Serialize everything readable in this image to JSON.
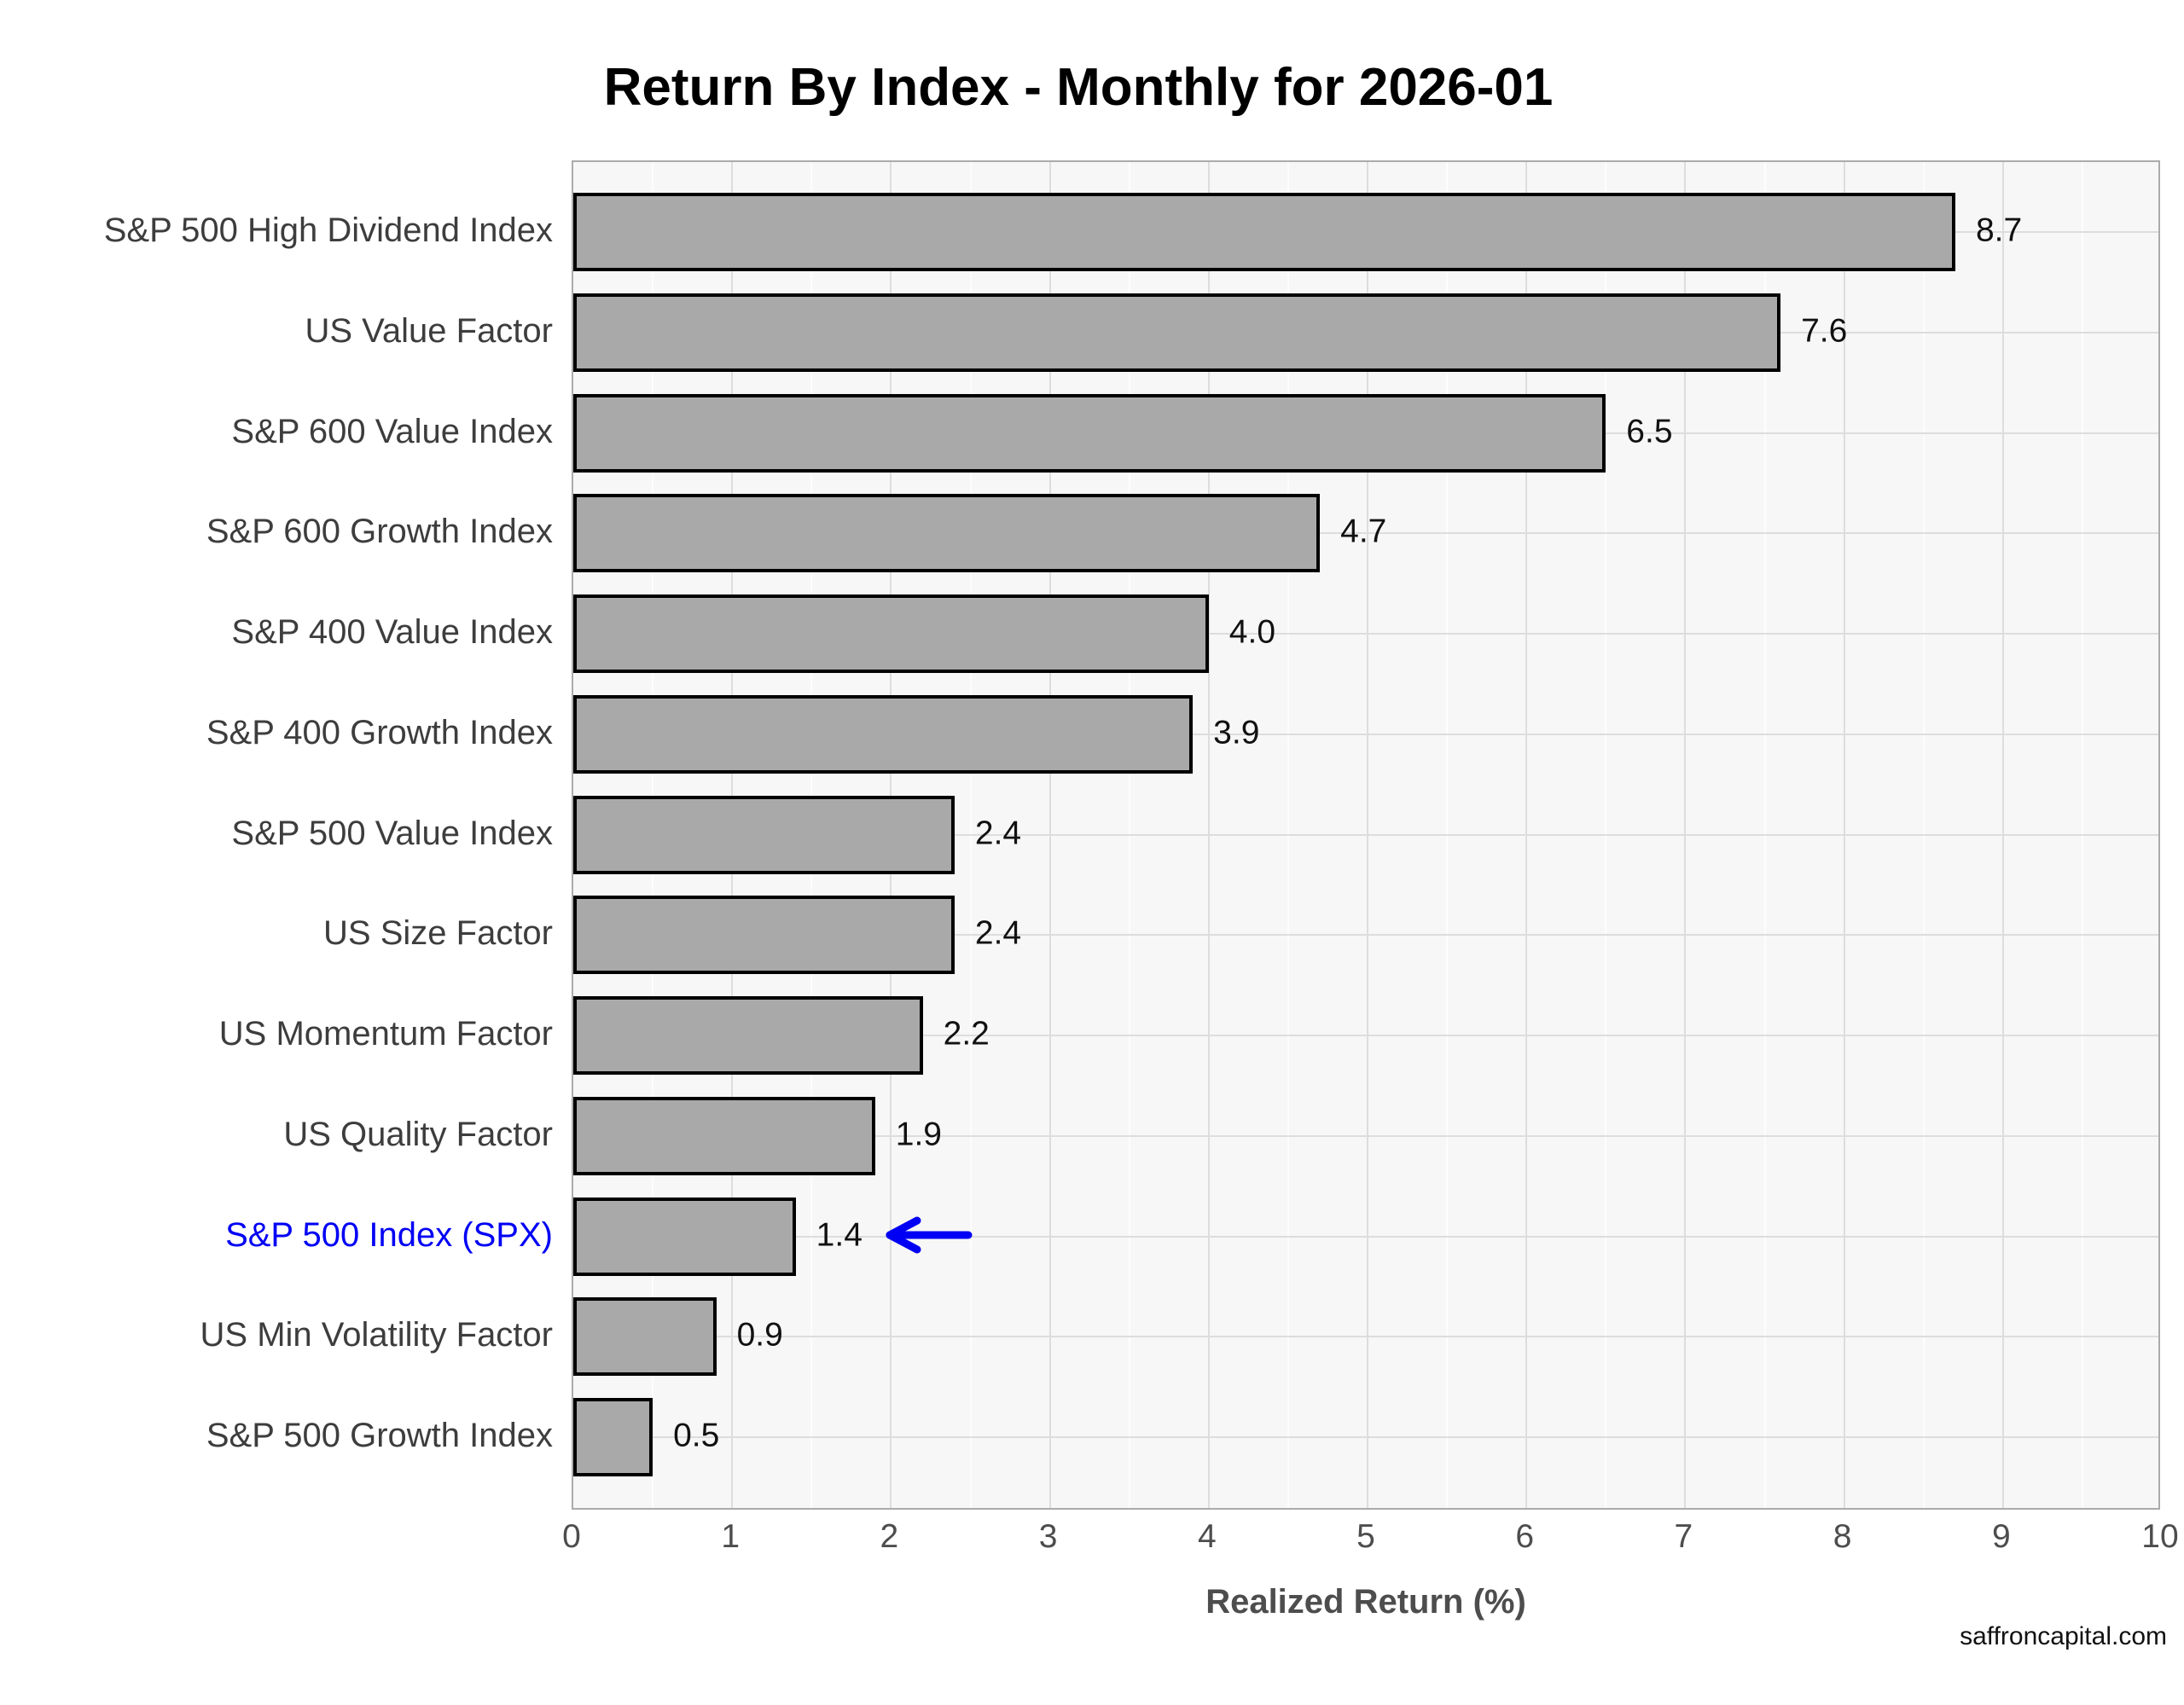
{
  "chart_data": {
    "type": "bar",
    "orientation": "horizontal",
    "title": "Return By Index - Monthly for 2026-01",
    "xlabel": "Realized Return (%)",
    "xlim": [
      0,
      10
    ],
    "xticks": [
      "0",
      "1",
      "2",
      "3",
      "4",
      "5",
      "6",
      "7",
      "8",
      "9",
      "10"
    ],
    "grid": {
      "x_minor_interval": 0.5,
      "x_major_interval": 1,
      "y": "category-centers"
    },
    "categories": [
      "S&P 500 High Dividend Index",
      "US Value Factor",
      "S&P 600 Value Index",
      "S&P 600 Growth Index",
      "S&P 400 Value Index",
      "S&P 400 Growth Index",
      "S&P 500 Value Index",
      "US Size Factor",
      "US Momentum Factor",
      "US Quality Factor",
      "S&P 500 Index (SPX)",
      "US Min Volatility Factor",
      "S&P 500 Growth Index"
    ],
    "values": [
      8.7,
      7.6,
      6.5,
      4.7,
      4.0,
      3.9,
      2.4,
      2.4,
      2.2,
      1.9,
      1.4,
      0.9,
      0.5
    ],
    "value_labels": [
      "8.7",
      "7.6",
      "6.5",
      "4.7",
      "4.0",
      "3.9",
      "2.4",
      "2.4",
      "2.2",
      "1.9",
      "1.4",
      "0.9",
      "0.5"
    ],
    "highlight": {
      "category": "S&P 500 Index (SPX)",
      "index": 10,
      "label_color": "#0000f5",
      "annotation": "blue-left-arrow"
    }
  },
  "colors": {
    "bar_fill": "#a9a9a9",
    "bar_border": "#000000",
    "plot_bg": "#f7f7f7",
    "grid_major": "#dddddd",
    "grid_minor": "#fdfdfd",
    "plot_border": "#ababab",
    "category_label": "#3d3d3d",
    "tick_label": "#4d4d4d",
    "axis_title": "#4d4d4d",
    "value_label": "#111111",
    "highlight_blue": "#0000f5",
    "title_color": "#000000"
  },
  "footer": {
    "watermark": "saffroncapital.com"
  }
}
